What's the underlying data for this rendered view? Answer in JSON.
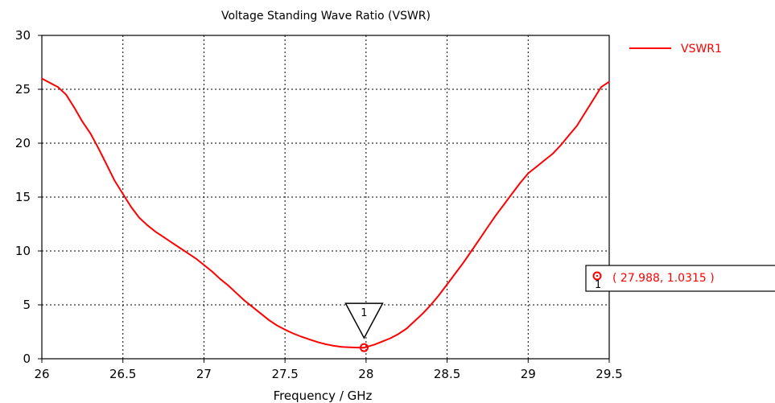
{
  "chart_data": {
    "type": "line",
    "title": "Voltage Standing Wave Ratio (VSWR)",
    "xlabel": "Frequency / GHz",
    "ylabel": "",
    "xlim": [
      26,
      29.5
    ],
    "ylim": [
      0,
      30
    ],
    "xticks": [
      26,
      26.5,
      27,
      27.5,
      28,
      28.5,
      29,
      29.5
    ],
    "xtick_labels": [
      "26",
      "26.5",
      "27",
      "27.5",
      "28",
      "28.5",
      "29",
      "29.5"
    ],
    "yticks": [
      0,
      5,
      10,
      15,
      20,
      25,
      30
    ],
    "ytick_labels": [
      "0",
      "5",
      "10",
      "15",
      "20",
      "25",
      "30"
    ],
    "grid": true,
    "legend_position": "top-right",
    "series": [
      {
        "name": "VSWR1",
        "color": "#ff0000",
        "x": [
          26.0,
          26.05,
          26.1,
          26.15,
          26.2,
          26.25,
          26.3,
          26.35,
          26.4,
          26.45,
          26.5,
          26.55,
          26.6,
          26.65,
          26.7,
          26.75,
          26.8,
          26.85,
          26.9,
          26.95,
          27.0,
          27.05,
          27.1,
          27.15,
          27.2,
          27.25,
          27.3,
          27.35,
          27.4,
          27.45,
          27.5,
          27.55,
          27.6,
          27.65,
          27.7,
          27.75,
          27.8,
          27.85,
          27.9,
          27.95,
          27.988,
          28.05,
          28.1,
          28.15,
          28.2,
          28.25,
          28.3,
          28.35,
          28.4,
          28.45,
          28.5,
          28.55,
          28.6,
          28.65,
          28.7,
          28.75,
          28.8,
          28.85,
          28.9,
          28.95,
          29.0,
          29.05,
          29.1,
          29.15,
          29.2,
          29.25,
          29.3,
          29.35,
          29.4,
          29.45,
          29.5
        ],
        "y": [
          26.0,
          25.6,
          25.2,
          24.5,
          23.3,
          22.0,
          20.9,
          19.5,
          18.0,
          16.5,
          15.3,
          14.1,
          13.1,
          12.4,
          11.8,
          11.3,
          10.8,
          10.3,
          9.8,
          9.3,
          8.7,
          8.1,
          7.4,
          6.8,
          6.1,
          5.4,
          4.8,
          4.2,
          3.6,
          3.1,
          2.7,
          2.35,
          2.05,
          1.8,
          1.55,
          1.35,
          1.2,
          1.1,
          1.06,
          1.04,
          1.0315,
          1.3,
          1.6,
          1.9,
          2.3,
          2.8,
          3.5,
          4.2,
          5.0,
          5.9,
          6.9,
          7.9,
          8.9,
          10.0,
          11.1,
          12.2,
          13.3,
          14.3,
          15.3,
          16.3,
          17.2,
          17.8,
          18.4,
          19.0,
          19.8,
          20.7,
          21.6,
          22.8,
          24.0,
          25.2,
          25.7
        ]
      }
    ],
    "markers": [
      {
        "label": "1",
        "x": 27.988,
        "y": 1.0315,
        "readout": "( 27.988, 1.0315 )",
        "readout_index": "1"
      }
    ]
  }
}
